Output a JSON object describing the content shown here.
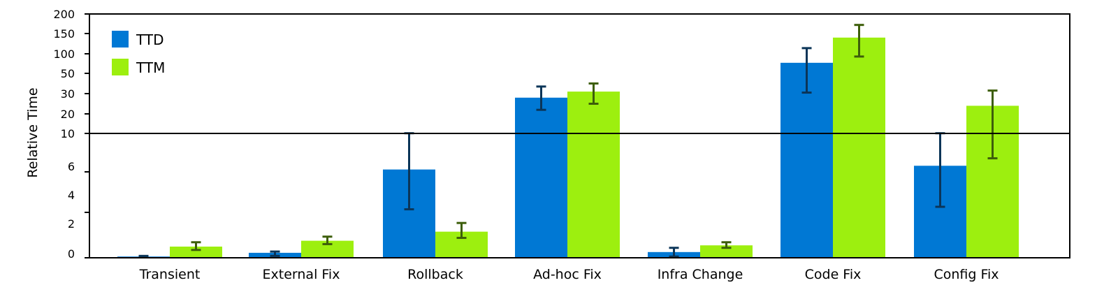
{
  "chart_data": {
    "type": "bar",
    "title": "",
    "xlabel": "",
    "ylabel": "Relative Time",
    "ylim": [
      0,
      200
    ],
    "yscale": "broken: linear 0-10 (lower half), ticks 10,20,30,50,100,150,200 evenly spaced (upper half)",
    "y_ticks_lower": [
      "0",
      "2",
      "4",
      "6",
      "10"
    ],
    "y_ticks_upper": [
      "10",
      "20",
      "30",
      "50",
      "100",
      "150",
      "200"
    ],
    "reference_line": 10,
    "legend_position": "upper left",
    "grid": false,
    "categories": [
      "Transient",
      "External Fix",
      "Rollback",
      "Ad-hoc Fix",
      "Infra Change",
      "Code Fix",
      "Config Fix"
    ],
    "series": [
      {
        "name": "TTD",
        "color": "#0078D4",
        "error_color": "#0B3558",
        "values": [
          0.1,
          0.4,
          7.1,
          28,
          0.46,
          77,
          7.4
        ],
        "error_low": [
          0.05,
          0.15,
          3.9,
          22,
          0.1,
          31,
          4.1
        ],
        "error_high": [
          0.15,
          0.5,
          10.1,
          37,
          0.8,
          114,
          10.1
        ]
      },
      {
        "name": "TTM",
        "color": "#9DEF0F",
        "error_color": "#3D5E0A",
        "values": [
          0.9,
          1.37,
          2.1,
          32,
          1.0,
          140,
          24
        ],
        "error_low": [
          0.63,
          1.1,
          1.6,
          25,
          0.8,
          93,
          8
        ],
        "error_high": [
          1.25,
          1.7,
          2.8,
          40,
          1.25,
          172,
          33
        ]
      }
    ]
  },
  "legend": {
    "items": [
      {
        "label": "TTD",
        "color": "#0078D4"
      },
      {
        "label": "TTM",
        "color": "#9DEF0F"
      }
    ]
  },
  "axis": {
    "y_title": "Relative Time"
  }
}
